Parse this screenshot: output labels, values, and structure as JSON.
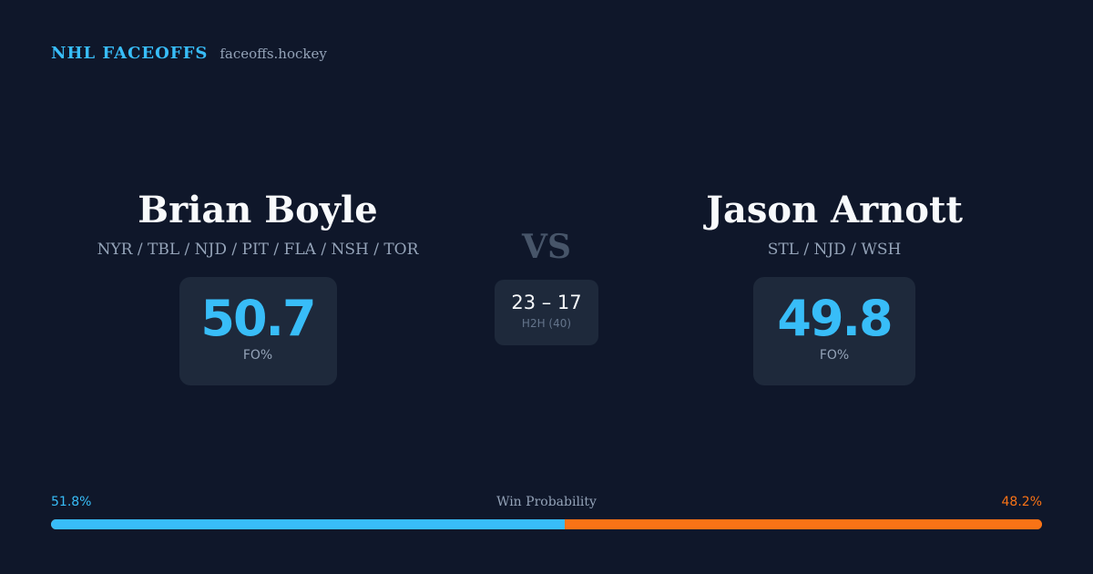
{
  "brand": {
    "name": "NHL FACEOFFS",
    "site": "faceoffs.hockey"
  },
  "player_left": {
    "name": "Brian Boyle",
    "teams": "NYR / TBL / NJD / PIT / FLA / NSH / TOR",
    "fo_pct": "50.7",
    "fo_label": "FO%"
  },
  "player_right": {
    "name": "Jason Arnott",
    "teams": "STL / NJD / WSH",
    "fo_pct": "49.8",
    "fo_label": "FO%"
  },
  "versus": "VS",
  "head_to_head": {
    "score": "23 – 17",
    "label": "H2H (40)"
  },
  "win_probability": {
    "title": "Win Probability",
    "left_label": "51.8%",
    "right_label": "48.2%",
    "left_value": 51.8,
    "right_value": 48.2,
    "colors": {
      "left": "#38bdf8",
      "right": "#f97316"
    }
  },
  "colors": {
    "background": "#0f172a",
    "card": "#1e293b",
    "accent": "#38bdf8",
    "secondary_accent": "#f97316",
    "muted_text": "#94a3b8"
  }
}
